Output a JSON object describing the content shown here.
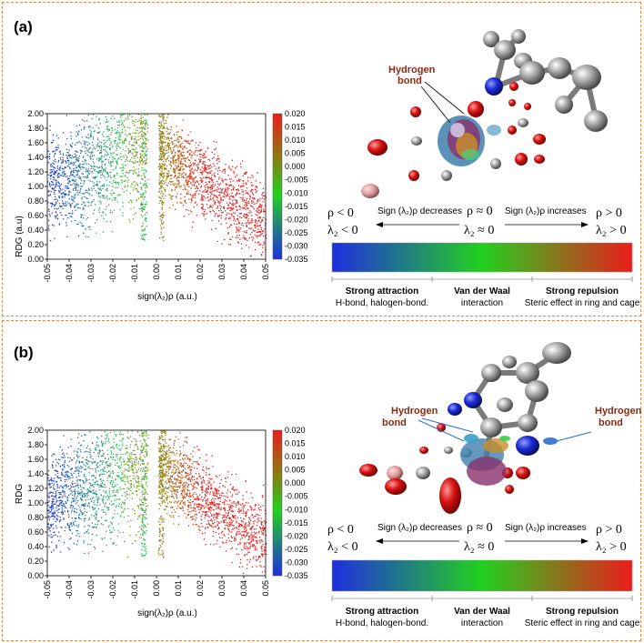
{
  "panels": [
    {
      "label": "(a)",
      "hbond_labels": [
        [
          "Hydrogen",
          "bond"
        ]
      ],
      "legend": {
        "left_rho": "ρ < 0",
        "left_lambda": "λ₂ < 0",
        "mid_rho": "ρ ≈ 0",
        "mid_lambda": "λ₂ ≈ 0",
        "right_rho": "ρ > 0",
        "right_lambda": "λ₂ > 0",
        "decreases": "Sign (λ₂)ρ decreases",
        "increases": "Sign (λ₂)ρ increases",
        "categories": [
          {
            "title": "Strong attraction",
            "sub": "H-bond, halogen-bond."
          },
          {
            "title": "Van der Waal",
            "sub": "interaction"
          },
          {
            "title": "Strong repulsion",
            "sub": "Steric effect in ring and cage"
          }
        ]
      }
    },
    {
      "label": "(b)",
      "hbond_labels": [
        [
          "Hydrogen",
          "bond"
        ],
        [
          "Hydrogen",
          "bond"
        ]
      ],
      "legend": {
        "left_rho": "ρ < 0",
        "left_lambda": "λ₂ < 0",
        "mid_rho": "ρ ≈ 0",
        "mid_lambda": "λ₂ ≈ 0",
        "right_rho": "ρ > 0",
        "right_lambda": "λ₂ > 0",
        "decreases": "Sign (λ₂)ρ decreases",
        "increases": "Sign (λ₂)ρ increases",
        "categories": [
          {
            "title": "Strong attraction",
            "sub": "H-bond, halogen-bond."
          },
          {
            "title": "Van der Waal",
            "sub": "interaction"
          },
          {
            "title": "Strong repulsion",
            "sub": "Steric effect in ring and cage"
          }
        ]
      }
    }
  ],
  "chart_data": [
    {
      "type": "scatter",
      "title": "",
      "xlabel": "sign(λ₂)ρ (a.u.)",
      "ylabel": "RDG (a.u)",
      "xlim": [
        -0.05,
        0.05
      ],
      "ylim": [
        0,
        2.0
      ],
      "xticks": [
        "-0.05",
        "-0.04",
        "-0.03",
        "-0.02",
        "-0.01",
        "0.00",
        "0.01",
        "0.02",
        "0.03",
        "0.04",
        "0.05"
      ],
      "yticks": [
        "0.00",
        "0.20",
        "0.40",
        "0.60",
        "0.80",
        "1.00",
        "1.20",
        "1.40",
        "1.60",
        "1.80",
        "2.00"
      ],
      "colorbar": {
        "min": -0.035,
        "max": 0.02,
        "ticks": [
          "0.020",
          "0.015",
          "0.010",
          "0.005",
          "0.000",
          "-0.005",
          "-0.010",
          "-0.015",
          "-0.020",
          "-0.025",
          "-0.030",
          "-0.035"
        ]
      },
      "spikes": [
        {
          "x": -0.006,
          "top": 2.0
        },
        {
          "x": 0.002,
          "top": 2.0
        }
      ],
      "attractive_region": [
        -0.05,
        -0.004
      ],
      "repulsive_region": [
        0.001,
        0.05
      ]
    },
    {
      "type": "scatter",
      "title": "",
      "xlabel": "sign(λ₂)ρ (a.u.)",
      "ylabel": "RDG",
      "xlim": [
        -0.05,
        0.05
      ],
      "ylim": [
        0,
        2.0
      ],
      "xticks": [
        "-0.05",
        "-0.04",
        "-0.03",
        "-0.02",
        "-0.01",
        "0.00",
        "0.01",
        "0.02",
        "0.03",
        "0.04",
        "0.05"
      ],
      "yticks": [
        "0.00",
        "0.20",
        "0.40",
        "0.60",
        "0.80",
        "1.00",
        "1.20",
        "1.40",
        "1.60",
        "1.80",
        "2.00"
      ],
      "colorbar": {
        "min": -0.035,
        "max": 0.02,
        "ticks": [
          "0.020",
          "0.015",
          "0.010",
          "0.005",
          "0.000",
          "-0.005",
          "-0.010",
          "-0.015",
          "-0.020",
          "-0.025",
          "-0.030",
          "-0.035"
        ]
      },
      "spikes": [
        {
          "x": -0.006,
          "top": 2.0
        },
        {
          "x": 0.002,
          "top": 2.0
        }
      ],
      "attractive_region": [
        -0.05,
        -0.004
      ],
      "repulsive_region": [
        0.001,
        0.05
      ]
    }
  ],
  "colors": {
    "border": "#d98c4a",
    "hbond": "#8b2a10",
    "blue": "#1f2ee0",
    "green": "#22d11e",
    "red": "#ec1c1c"
  }
}
